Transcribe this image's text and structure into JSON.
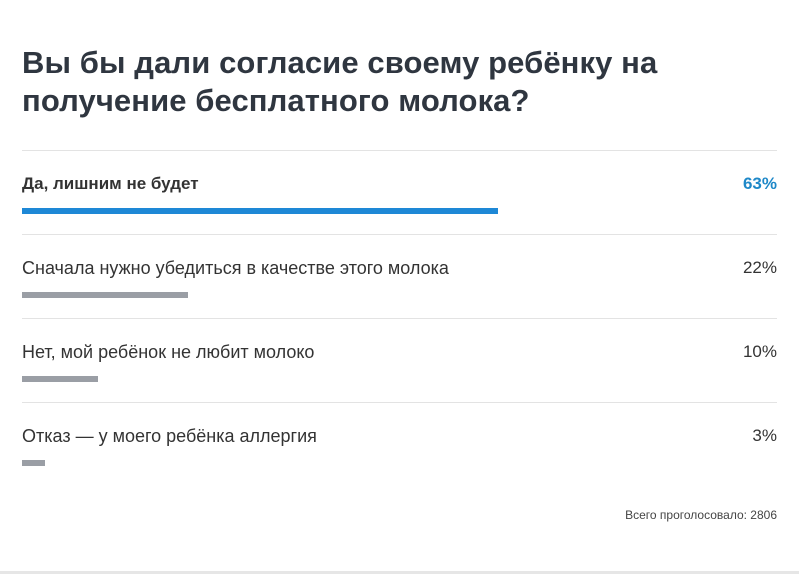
{
  "poll": {
    "question": "Вы бы дали согласие своему ребёнку на получение бесплатного молока?",
    "options": [
      {
        "label": "Да, лишним не будет",
        "percent_text": "63%",
        "share": 0.63,
        "leader": true,
        "bar_color": "#1e88d6"
      },
      {
        "label": "Сначала нужно убедиться в качестве этого молока",
        "percent_text": "22%",
        "share": 0.22,
        "leader": false,
        "bar_color": "#9a9ea5"
      },
      {
        "label": "Нет, мой ребёнок не любит молоко",
        "percent_text": "10%",
        "share": 0.1,
        "leader": false,
        "bar_color": "#9a9ea5"
      },
      {
        "label": "Отказ — у моего ребёнка аллергия",
        "percent_text": "3%",
        "share": 0.03,
        "leader": false,
        "bar_color": "#9a9ea5"
      }
    ],
    "total_votes_text": "Всего проголосовало: 2806"
  },
  "colors": {
    "accent": "#1e88c8",
    "bar_default": "#9a9ea5",
    "title": "#2f3640",
    "divider": "#e3e3e3"
  }
}
